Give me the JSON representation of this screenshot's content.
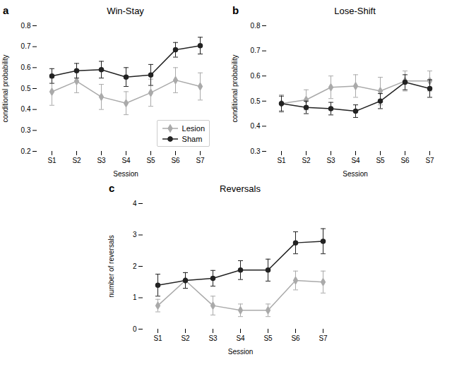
{
  "chart_data": [
    {
      "type": "line",
      "title": "Win-Stay",
      "annotation": "a",
      "xlabel": "Session",
      "ylabel": "conditional probability",
      "categories": [
        "S1",
        "S2",
        "S3",
        "S4",
        "S5",
        "S6",
        "S7"
      ],
      "series": [
        {
          "name": "Lesion",
          "color": "#aaaaaa",
          "marker": "diamond",
          "values": [
            0.485,
            0.535,
            0.46,
            0.43,
            0.48,
            0.54,
            0.51
          ],
          "errors": [
            0.065,
            0.055,
            0.06,
            0.055,
            0.065,
            0.06,
            0.065
          ]
        },
        {
          "name": "Sham",
          "color": "#222222",
          "marker": "circle",
          "values": [
            0.56,
            0.585,
            0.59,
            0.555,
            0.565,
            0.685,
            0.705
          ],
          "errors": [
            0.035,
            0.035,
            0.04,
            0.045,
            0.05,
            0.035,
            0.04
          ]
        }
      ],
      "ylim": [
        0.2,
        0.8
      ],
      "yticks": [
        0.2,
        0.3,
        0.4,
        0.5,
        0.6,
        0.7,
        0.8
      ],
      "grid": false,
      "legend": "lower right"
    },
    {
      "type": "line",
      "title": "Lose-Shift",
      "annotation": "b",
      "xlabel": "Session",
      "ylabel": "conditional probability",
      "categories": [
        "S1",
        "S2",
        "S3",
        "S4",
        "S5",
        "S6",
        "S7"
      ],
      "series": [
        {
          "name": "Lesion",
          "color": "#aaaaaa",
          "marker": "diamond",
          "values": [
            0.49,
            0.505,
            0.555,
            0.56,
            0.54,
            0.58,
            0.58
          ],
          "errors": [
            0.035,
            0.04,
            0.045,
            0.045,
            0.055,
            0.04,
            0.04
          ]
        },
        {
          "name": "Sham",
          "color": "#222222",
          "marker": "circle",
          "values": [
            0.49,
            0.475,
            0.47,
            0.46,
            0.5,
            0.575,
            0.55
          ],
          "errors": [
            0.03,
            0.025,
            0.025,
            0.025,
            0.03,
            0.03,
            0.035
          ]
        }
      ],
      "ylim": [
        0.3,
        0.8
      ],
      "yticks": [
        0.3,
        0.4,
        0.5,
        0.6,
        0.7,
        0.8
      ],
      "grid": false
    },
    {
      "type": "line",
      "title": "Reversals",
      "annotation": "c",
      "xlabel": "Session",
      "ylabel": "number of reversals",
      "categories": [
        "S1",
        "S2",
        "S3",
        "S4",
        "S5",
        "S6",
        "S7"
      ],
      "series": [
        {
          "name": "Lesion",
          "color": "#aaaaaa",
          "marker": "diamond",
          "values": [
            0.75,
            1.55,
            0.75,
            0.6,
            0.6,
            1.55,
            1.5
          ],
          "errors": [
            0.2,
            0.25,
            0.3,
            0.2,
            0.2,
            0.3,
            0.35
          ]
        },
        {
          "name": "Sham",
          "color": "#222222",
          "marker": "circle",
          "values": [
            1.4,
            1.55,
            1.62,
            1.88,
            1.88,
            2.75,
            2.8
          ],
          "errors": [
            0.35,
            0.25,
            0.25,
            0.3,
            0.35,
            0.35,
            0.4
          ]
        }
      ],
      "ylim": [
        0,
        4
      ],
      "yticks": [
        0,
        1,
        2,
        3,
        4
      ],
      "grid": false
    }
  ]
}
